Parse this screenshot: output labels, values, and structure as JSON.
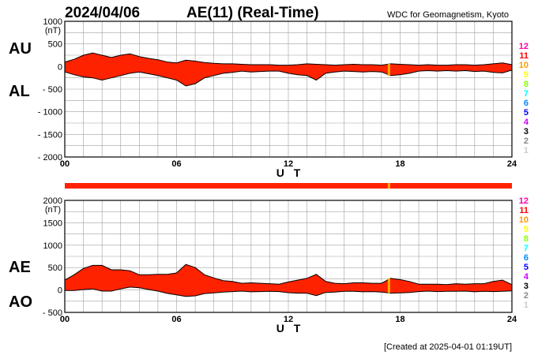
{
  "header": {
    "date": "2024/04/06",
    "title": "AE(11) (Real-Time)",
    "source": "WDC for Geomagnetism, Kyoto"
  },
  "footer": "[Created at 2025-04-01 01:19UT]",
  "colors": {
    "fill": "#ff2200",
    "line": "#000000",
    "grid": "#a0a0a0",
    "highlight": "#ffaa00",
    "background": "#ffffff"
  },
  "legend": {
    "entries": [
      {
        "label": "12",
        "color": "#ff00aa"
      },
      {
        "label": "11",
        "color": "#ff0000"
      },
      {
        "label": "10",
        "color": "#ff9900"
      },
      {
        "label": "9",
        "color": "#ffff00"
      },
      {
        "label": "8",
        "color": "#88ff00"
      },
      {
        "label": "7",
        "color": "#00ffff"
      },
      {
        "label": "6",
        "color": "#0088ff"
      },
      {
        "label": "5",
        "color": "#0000ff"
      },
      {
        "label": "4",
        "color": "#cc00ff"
      },
      {
        "label": "3",
        "color": "#000000"
      },
      {
        "label": "2",
        "color": "#888888"
      },
      {
        "label": "1",
        "color": "#cccccc"
      }
    ]
  },
  "station_bar": {
    "color": "#ff2200",
    "marks": [
      {
        "x": 17.4,
        "color": "#ffaa00"
      }
    ]
  },
  "chart_data": [
    {
      "type": "area",
      "name": "AU/AL",
      "side_labels": [
        "AU",
        "AL"
      ],
      "unit": "(nT)",
      "xlabel": "U T",
      "xlim": [
        0,
        24
      ],
      "ylim": [
        -2000,
        1000
      ],
      "xticks": [
        0,
        6,
        12,
        18,
        24
      ],
      "xticklabels": [
        "00",
        "06",
        "12",
        "18",
        "24"
      ],
      "yticks": [
        1000,
        500,
        0,
        -500,
        -1000,
        -1500,
        -2000
      ],
      "yticklabels": [
        "1000",
        "500",
        "0",
        "- 500",
        "- 1000",
        "- 1500",
        "- 2000"
      ],
      "grid": true,
      "x": [
        0,
        0.5,
        1,
        1.5,
        2,
        2.5,
        3,
        3.5,
        4,
        4.5,
        5,
        5.5,
        6,
        6.5,
        7,
        7.5,
        8,
        8.5,
        9,
        9.5,
        10,
        10.5,
        11,
        11.5,
        12,
        12.5,
        13,
        13.5,
        14,
        14.5,
        15,
        15.5,
        16,
        16.5,
        17,
        17.5,
        18,
        18.5,
        19,
        19.5,
        20,
        20.5,
        21,
        21.5,
        22,
        22.5,
        23,
        23.5,
        24
      ],
      "series": [
        {
          "name": "AU",
          "values": [
            100,
            160,
            250,
            300,
            250,
            200,
            250,
            280,
            220,
            180,
            150,
            100,
            80,
            140,
            120,
            90,
            70,
            60,
            60,
            50,
            40,
            40,
            40,
            30,
            30,
            40,
            60,
            50,
            40,
            30,
            40,
            50,
            40,
            40,
            30,
            60,
            50,
            40,
            30,
            40,
            30,
            30,
            40,
            40,
            30,
            40,
            60,
            80,
            40
          ]
        },
        {
          "name": "AL",
          "values": [
            -120,
            -180,
            -230,
            -250,
            -300,
            -250,
            -200,
            -150,
            -120,
            -160,
            -200,
            -250,
            -300,
            -430,
            -380,
            -250,
            -200,
            -150,
            -130,
            -100,
            -120,
            -110,
            -100,
            -100,
            -150,
            -180,
            -200,
            -300,
            -150,
            -120,
            -100,
            -110,
            -120,
            -110,
            -120,
            -200,
            -180,
            -150,
            -100,
            -90,
            -100,
            -90,
            -100,
            -90,
            -110,
            -100,
            -130,
            -140,
            -80
          ]
        }
      ]
    },
    {
      "type": "area",
      "name": "AE/AO",
      "side_labels": [
        "AE",
        "AO"
      ],
      "unit": "(nT)",
      "xlabel": "U T",
      "xlim": [
        0,
        24
      ],
      "ylim": [
        -500,
        2000
      ],
      "xticks": [
        0,
        6,
        12,
        18,
        24
      ],
      "xticklabels": [
        "00",
        "06",
        "12",
        "18",
        "24"
      ],
      "yticks": [
        2000,
        1500,
        1000,
        500,
        0,
        -500
      ],
      "yticklabels": [
        "2000",
        "1500",
        "1000",
        "500",
        "0",
        "- 500"
      ],
      "grid": true,
      "x": [
        0,
        0.5,
        1,
        1.5,
        2,
        2.5,
        3,
        3.5,
        4,
        4.5,
        5,
        5.5,
        6,
        6.5,
        7,
        7.5,
        8,
        8.5,
        9,
        9.5,
        10,
        10.5,
        11,
        11.5,
        12,
        12.5,
        13,
        13.5,
        14,
        14.5,
        15,
        15.5,
        16,
        16.5,
        17,
        17.5,
        18,
        18.5,
        19,
        19.5,
        20,
        20.5,
        21,
        21.5,
        22,
        22.5,
        23,
        23.5,
        24
      ],
      "series": [
        {
          "name": "AE",
          "values": [
            220,
            340,
            480,
            550,
            550,
            450,
            450,
            430,
            340,
            340,
            350,
            350,
            380,
            570,
            500,
            340,
            270,
            210,
            190,
            150,
            160,
            150,
            140,
            130,
            180,
            220,
            260,
            350,
            190,
            150,
            140,
            160,
            160,
            150,
            150,
            260,
            230,
            190,
            130,
            130,
            130,
            120,
            140,
            130,
            140,
            140,
            190,
            220,
            120
          ]
        },
        {
          "name": "AO",
          "values": [
            -10,
            -10,
            10,
            25,
            -25,
            -25,
            25,
            65,
            50,
            10,
            -25,
            -75,
            -110,
            -145,
            -130,
            -80,
            -65,
            -45,
            -35,
            -25,
            -40,
            -35,
            -30,
            -35,
            -60,
            -70,
            -70,
            -125,
            -55,
            -45,
            -30,
            -30,
            -40,
            -35,
            -45,
            -70,
            -65,
            -55,
            -35,
            -25,
            -35,
            -30,
            -30,
            -25,
            -40,
            -30,
            -35,
            -30,
            -20
          ]
        }
      ]
    }
  ]
}
